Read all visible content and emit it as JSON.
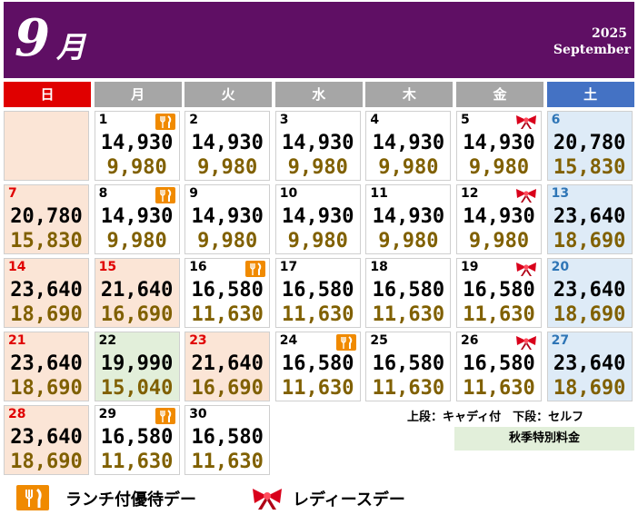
{
  "header": {
    "month_num": "9",
    "month_kanji": "月",
    "year": "2025",
    "month_english": "September",
    "bg_color": "#5f0f64"
  },
  "weekdays": [
    {
      "label": "日",
      "color": "#e00000"
    },
    {
      "label": "月",
      "color": "#a6a6a6"
    },
    {
      "label": "火",
      "color": "#a6a6a6"
    },
    {
      "label": "水",
      "color": "#a6a6a6"
    },
    {
      "label": "木",
      "color": "#a6a6a6"
    },
    {
      "label": "金",
      "color": "#a6a6a6"
    },
    {
      "label": "土",
      "color": "#4472c4"
    }
  ],
  "weeks": [
    [
      null,
      {
        "day": "1",
        "caddy": "14,930",
        "self": "9,980",
        "icon": "fork-knife-icon"
      },
      {
        "day": "2",
        "caddy": "14,930",
        "self": "9,980"
      },
      {
        "day": "3",
        "caddy": "14,930",
        "self": "9,980"
      },
      {
        "day": "4",
        "caddy": "14,930",
        "self": "9,980"
      },
      {
        "day": "5",
        "caddy": "14,930",
        "self": "9,980",
        "icon": "ribbon-icon"
      },
      {
        "day": "6",
        "caddy": "20,780",
        "self": "15,830",
        "style": "sat"
      }
    ],
    [
      {
        "day": "7",
        "caddy": "20,780",
        "self": "15,830",
        "style": "sun"
      },
      {
        "day": "8",
        "caddy": "14,930",
        "self": "9,980",
        "icon": "fork-knife-icon"
      },
      {
        "day": "9",
        "caddy": "14,930",
        "self": "9,980"
      },
      {
        "day": "10",
        "caddy": "14,930",
        "self": "9,980"
      },
      {
        "day": "11",
        "caddy": "14,930",
        "self": "9,980"
      },
      {
        "day": "12",
        "caddy": "14,930",
        "self": "9,980",
        "icon": "ribbon-icon"
      },
      {
        "day": "13",
        "caddy": "23,640",
        "self": "18,690",
        "style": "sat"
      }
    ],
    [
      {
        "day": "14",
        "caddy": "23,640",
        "self": "18,690",
        "style": "sun"
      },
      {
        "day": "15",
        "caddy": "21,640",
        "self": "16,690",
        "style": "hol"
      },
      {
        "day": "16",
        "caddy": "16,580",
        "self": "11,630",
        "icon": "fork-knife-icon"
      },
      {
        "day": "17",
        "caddy": "16,580",
        "self": "11,630"
      },
      {
        "day": "18",
        "caddy": "16,580",
        "self": "11,630"
      },
      {
        "day": "19",
        "caddy": "16,580",
        "self": "11,630",
        "icon": "ribbon-icon"
      },
      {
        "day": "20",
        "caddy": "23,640",
        "self": "18,690",
        "style": "sat"
      }
    ],
    [
      {
        "day": "21",
        "caddy": "23,640",
        "self": "18,690",
        "style": "sun"
      },
      {
        "day": "22",
        "caddy": "19,990",
        "self": "15,040",
        "style": "aut"
      },
      {
        "day": "23",
        "caddy": "21,640",
        "self": "16,690",
        "style": "hol"
      },
      {
        "day": "24",
        "caddy": "16,580",
        "self": "11,630",
        "icon": "fork-knife-icon"
      },
      {
        "day": "25",
        "caddy": "16,580",
        "self": "11,630"
      },
      {
        "day": "26",
        "caddy": "16,580",
        "self": "11,630",
        "icon": "ribbon-icon"
      },
      {
        "day": "27",
        "caddy": "23,640",
        "self": "18,690",
        "style": "sat"
      }
    ],
    [
      {
        "day": "28",
        "caddy": "23,640",
        "self": "18,690",
        "style": "sun"
      },
      {
        "day": "29",
        "caddy": "16,580",
        "self": "11,630",
        "icon": "fork-knife-icon"
      },
      {
        "day": "30",
        "caddy": "16,580",
        "self": "11,630"
      },
      null,
      null,
      null,
      null
    ]
  ],
  "notes": {
    "tier_note": "上段：キャディ付　下段：セルフ",
    "autumn_special": "秋季特別料金"
  },
  "legend": {
    "lunch_label": "ランチ付優待デー",
    "ladies_label": "レディースデー"
  },
  "colors": {
    "sunday_holiday_bg": "#fbe5d6",
    "saturday_bg": "#deebf7",
    "autumn_special_bg": "#e2efda",
    "lower_price_color": "#806000",
    "lunch_icon_color": "#f08a00",
    "ribbon_color": "#c00000"
  }
}
